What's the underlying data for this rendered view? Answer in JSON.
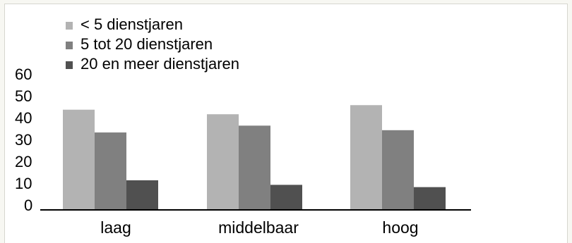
{
  "chart_data": {
    "type": "bar",
    "title": "",
    "xlabel": "",
    "ylabel": "",
    "categories": [
      "laag",
      "middelbaar",
      "hoog"
    ],
    "series": [
      {
        "name": "< 5 dienstjaren",
        "values": [
          44,
          42,
          46
        ],
        "color": "#b3b3b3"
      },
      {
        "name": "5 tot 20 dienstjaren",
        "values": [
          34,
          37,
          35
        ],
        "color": "#808080"
      },
      {
        "name": "20 en meer dienstjaren",
        "values": [
          13,
          11,
          10
        ],
        "color": "#505050"
      }
    ],
    "ylim": [
      0,
      60
    ],
    "yticks": [
      "0",
      "10",
      "20",
      "30",
      "40",
      "50",
      "60"
    ],
    "legend_position": "top-left",
    "grid": false
  }
}
